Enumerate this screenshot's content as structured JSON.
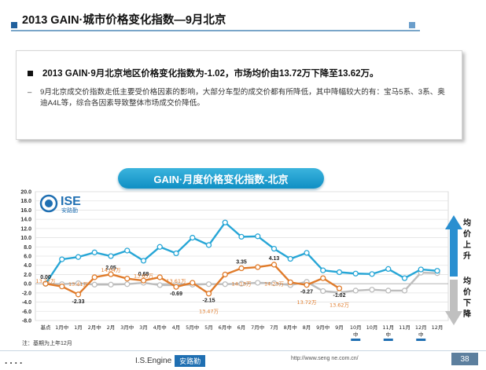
{
  "header": {
    "title": "2013 GAIN·城市价格变化指数—9月北京"
  },
  "summary": {
    "headline": "2013 GAIN·9月北京地区价格变化指数为-1.02，市场均价由13.72万下降至13.62万。",
    "detail_dash": "–",
    "detail": "9月北京成交价指数走低主要受价格因素的影响，大部分车型的成交价都有所降低，其中降幅较大的有：宝马5系、3系、奥迪A4L等，综合各因素导致整体市场成交价降低。"
  },
  "chart_title": "GAIN·月度价格变化指数-北京",
  "logo": {
    "text": "ISE",
    "sub": "安路勤"
  },
  "side": {
    "up": "均价上升",
    "down": "均价下降"
  },
  "note": "注：基期为上年12月",
  "footer": {
    "dots": "....",
    "brand": "I.S.Engine",
    "brand_badge": "安路勤",
    "url": "http://www.seng ne.com.cn/",
    "page": "38"
  },
  "colors": {
    "index": "#e07b2a",
    "price": "#27a6d6",
    "prev": "#bdbdbd",
    "accent": "#1f6fb2"
  },
  "chart_data": {
    "type": "line",
    "x_labels": [
      "基点",
      "1月中",
      "1月",
      "2月中",
      "2月",
      "3月中",
      "3月",
      "4月中",
      "4月",
      "5月中",
      "5月",
      "6月中",
      "6月",
      "7月中",
      "7月",
      "8月中",
      "8月",
      "9月中",
      "9月",
      "10月中",
      "10月",
      "11月中",
      "11月",
      "12月中",
      "12月"
    ],
    "y_ticks": [
      "-8.0",
      "-6.0",
      "-4.0",
      "-2.0",
      "0.0",
      "2.0",
      "4.0",
      "6.0",
      "8.0",
      "10.0",
      "12.0",
      "14.0",
      "16.0",
      "18.0",
      "20.0"
    ],
    "ylim": [
      -8,
      20
    ],
    "series": [
      {
        "values": [
          0.0,
          5.3,
          5.8,
          6.8,
          6.0,
          7.2,
          5.0,
          8.0,
          6.6,
          10.0,
          8.4,
          13.3,
          10.2,
          10.3,
          7.6,
          5.4,
          6.7,
          2.9,
          2.5,
          2.2,
          2.1,
          3.2,
          1.2,
          3.1,
          2.8
        ]
      },
      {
        "values": [
          0.0,
          -0.6,
          -2.33,
          1.4,
          2.05,
          1.1,
          0.68,
          1.4,
          -0.69,
          0.2,
          -2.15,
          2.0,
          3.35,
          3.6,
          4.13,
          0.3,
          -0.27,
          1.2,
          -1.02
        ]
      },
      {
        "values": [
          0.0,
          -0.1,
          0.1,
          -0.2,
          -0.2,
          -0.1,
          0.2,
          -0.3,
          -0.3,
          -0.2,
          -0.1,
          -0.1,
          0.0,
          0.2,
          0.1,
          -0.3,
          0.4,
          -1.6,
          -1.9,
          -1.5,
          -1.3,
          -1.5,
          -1.5,
          2.4,
          2.3
        ]
      }
    ],
    "data_labels": [
      {
        "text": "0.00",
        "i": 0,
        "v": 0.0
      },
      {
        "text": "-2.33",
        "i": 2,
        "v": -2.33
      },
      {
        "text": "2.05",
        "i": 4,
        "v": 2.05
      },
      {
        "text": "0.68",
        "i": 6,
        "v": 0.68
      },
      {
        "text": "-0.69",
        "i": 8,
        "v": -0.69
      },
      {
        "text": "-2.15",
        "i": 10,
        "v": -2.15
      },
      {
        "text": "3.35",
        "i": 12,
        "v": 3.35
      },
      {
        "text": "4.13",
        "i": 14,
        "v": 4.13
      },
      {
        "text": "-0.27",
        "i": 16,
        "v": -0.27
      },
      {
        "text": "-1.02",
        "i": 18,
        "v": -1.02
      }
    ],
    "price_labels": [
      {
        "text": "13.72万",
        "i": 0,
        "v": 0.2
      },
      {
        "text": "13.41万",
        "i": 2,
        "v": -0.5
      },
      {
        "text": "14.04万",
        "i": 4,
        "v": 2.6
      },
      {
        "text": "13.65万",
        "i": 6,
        "v": 1.3
      },
      {
        "text": "13.61万",
        "i": 8,
        "v": 0.2
      },
      {
        "text": "13.47万",
        "i": 10,
        "v": -6.4
      },
      {
        "text": "14.13万",
        "i": 12,
        "v": -0.4
      },
      {
        "text": "14.23万",
        "i": 14,
        "v": -0.4
      },
      {
        "text": "13.72万",
        "i": 16,
        "v": -4.4
      },
      {
        "text": "13.62万",
        "i": 18,
        "v": -5.0
      }
    ]
  }
}
